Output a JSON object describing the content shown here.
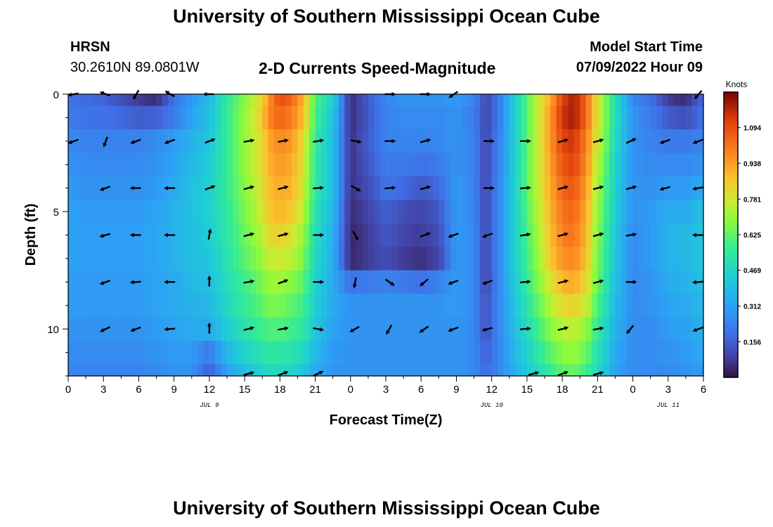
{
  "header": {
    "title": "University of Southern Mississippi Ocean Cube",
    "station": "HRSN",
    "coordinates": "30.2610N  89.0801W",
    "subtitle": "2-D Currents Speed-Magnitude",
    "model_start_label": "Model Start Time",
    "model_start_value": "07/09/2022 Hour 09"
  },
  "footer": {
    "title": "University of Southern Mississippi Ocean Cube"
  },
  "chart_data": {
    "type": "heatmap",
    "xlabel": "Forecast Time(Z)",
    "ylabel": "Depth (ft)",
    "x_ticks": [
      {
        "t": 0,
        "label": "0"
      },
      {
        "t": 3,
        "label": "3"
      },
      {
        "t": 6,
        "label": "6"
      },
      {
        "t": 9,
        "label": "9"
      },
      {
        "t": 12,
        "label": "12"
      },
      {
        "t": 15,
        "label": "15"
      },
      {
        "t": 18,
        "label": "18"
      },
      {
        "t": 21,
        "label": "21"
      },
      {
        "t": 24,
        "label": "0"
      },
      {
        "t": 27,
        "label": "3"
      },
      {
        "t": 30,
        "label": "6"
      },
      {
        "t": 33,
        "label": "9"
      },
      {
        "t": 36,
        "label": "12"
      },
      {
        "t": 39,
        "label": "15"
      },
      {
        "t": 42,
        "label": "18"
      },
      {
        "t": 45,
        "label": "21"
      },
      {
        "t": 48,
        "label": "0"
      },
      {
        "t": 51,
        "label": "3"
      },
      {
        "t": 54,
        "label": "6"
      }
    ],
    "date_labels": [
      {
        "t": 12,
        "label": "JUL 9"
      },
      {
        "t": 36,
        "label": "JUL 10"
      },
      {
        "t": 51,
        "label": "JUL 11"
      }
    ],
    "x_range": [
      0,
      54
    ],
    "y_ticks": [
      0,
      5,
      10
    ],
    "y_range": [
      0,
      12
    ],
    "y_inverted": true,
    "colorbar": {
      "label": "Knots",
      "ticks": [
        "1.094",
        "0.938",
        "0.781",
        "0.625",
        "0.469",
        "0.312",
        "0.156"
      ],
      "tick_values": [
        1.094,
        0.938,
        0.781,
        0.625,
        0.469,
        0.312,
        0.156
      ],
      "range": [
        0.0,
        1.25
      ],
      "colormap": "turbo"
    },
    "depths": [
      0,
      1,
      2,
      3,
      4,
      5,
      6,
      7,
      8,
      9,
      10,
      11,
      12
    ],
    "time_nodes": [
      0,
      1.5,
      3,
      4.5,
      6,
      7.5,
      9,
      10.5,
      12,
      13.5,
      15,
      16.5,
      17,
      18,
      19,
      20,
      21,
      22.5,
      24,
      25.5,
      27,
      28.5,
      30,
      31.5,
      33,
      34.5,
      35.5,
      36.5,
      38,
      39.5,
      41,
      42,
      43,
      44,
      45,
      46.5,
      48,
      49.5,
      51,
      52.5,
      54
    ],
    "speed": [
      [
        0.2,
        0.18,
        0.17,
        0.12,
        0.08,
        0.05,
        0.2,
        0.3,
        0.38,
        0.55,
        0.68,
        0.82,
        0.95,
        1.1,
        1.05,
        0.9,
        0.6,
        0.45,
        0.05,
        0.15,
        0.25,
        0.28,
        0.28,
        0.28,
        0.3,
        0.25,
        0.1,
        0.2,
        0.45,
        0.7,
        0.92,
        1.12,
        1.2,
        1.05,
        0.8,
        0.5,
        0.25,
        0.2,
        0.08,
        0.05,
        0.18
      ],
      [
        0.22,
        0.2,
        0.2,
        0.18,
        0.15,
        0.16,
        0.22,
        0.32,
        0.4,
        0.56,
        0.7,
        0.85,
        0.98,
        1.05,
        1.0,
        0.88,
        0.58,
        0.42,
        0.05,
        0.14,
        0.24,
        0.26,
        0.26,
        0.26,
        0.28,
        0.22,
        0.1,
        0.2,
        0.45,
        0.7,
        0.95,
        1.15,
        1.2,
        1.05,
        0.8,
        0.5,
        0.28,
        0.22,
        0.15,
        0.12,
        0.2
      ],
      [
        0.26,
        0.24,
        0.24,
        0.24,
        0.24,
        0.26,
        0.3,
        0.36,
        0.42,
        0.56,
        0.7,
        0.82,
        0.92,
        0.98,
        0.95,
        0.82,
        0.55,
        0.4,
        0.06,
        0.15,
        0.24,
        0.25,
        0.24,
        0.25,
        0.28,
        0.24,
        0.1,
        0.22,
        0.45,
        0.7,
        0.95,
        1.12,
        1.15,
        1.0,
        0.78,
        0.48,
        0.28,
        0.24,
        0.22,
        0.22,
        0.24
      ],
      [
        0.28,
        0.26,
        0.26,
        0.26,
        0.26,
        0.28,
        0.32,
        0.38,
        0.44,
        0.56,
        0.7,
        0.82,
        0.9,
        0.95,
        0.92,
        0.8,
        0.54,
        0.4,
        0.06,
        0.14,
        0.22,
        0.22,
        0.2,
        0.22,
        0.28,
        0.24,
        0.1,
        0.22,
        0.46,
        0.7,
        0.94,
        1.08,
        1.12,
        0.98,
        0.75,
        0.46,
        0.28,
        0.26,
        0.26,
        0.26,
        0.28
      ],
      [
        0.3,
        0.28,
        0.28,
        0.28,
        0.28,
        0.3,
        0.34,
        0.4,
        0.45,
        0.56,
        0.68,
        0.8,
        0.88,
        0.92,
        0.9,
        0.78,
        0.54,
        0.4,
        0.06,
        0.12,
        0.2,
        0.18,
        0.14,
        0.18,
        0.3,
        0.24,
        0.1,
        0.24,
        0.46,
        0.7,
        0.92,
        1.05,
        1.08,
        0.95,
        0.72,
        0.45,
        0.28,
        0.28,
        0.3,
        0.3,
        0.34
      ],
      [
        0.32,
        0.3,
        0.3,
        0.3,
        0.3,
        0.32,
        0.36,
        0.4,
        0.45,
        0.55,
        0.66,
        0.78,
        0.86,
        0.9,
        0.86,
        0.75,
        0.52,
        0.38,
        0.05,
        0.1,
        0.16,
        0.12,
        0.1,
        0.14,
        0.3,
        0.25,
        0.1,
        0.24,
        0.46,
        0.68,
        0.9,
        1.02,
        1.05,
        0.92,
        0.7,
        0.44,
        0.28,
        0.3,
        0.34,
        0.34,
        0.4
      ],
      [
        0.32,
        0.31,
        0.31,
        0.31,
        0.31,
        0.33,
        0.36,
        0.4,
        0.44,
        0.54,
        0.64,
        0.74,
        0.82,
        0.84,
        0.8,
        0.7,
        0.5,
        0.36,
        0.04,
        0.08,
        0.14,
        0.1,
        0.08,
        0.12,
        0.3,
        0.26,
        0.1,
        0.24,
        0.46,
        0.66,
        0.88,
        1.0,
        1.02,
        0.9,
        0.68,
        0.42,
        0.26,
        0.3,
        0.36,
        0.38,
        0.42
      ],
      [
        0.32,
        0.31,
        0.31,
        0.31,
        0.31,
        0.33,
        0.36,
        0.4,
        0.42,
        0.52,
        0.62,
        0.7,
        0.76,
        0.78,
        0.75,
        0.66,
        0.48,
        0.35,
        0.04,
        0.08,
        0.12,
        0.08,
        0.06,
        0.1,
        0.3,
        0.26,
        0.1,
        0.24,
        0.46,
        0.64,
        0.86,
        0.96,
        0.98,
        0.88,
        0.66,
        0.42,
        0.26,
        0.3,
        0.36,
        0.38,
        0.42
      ],
      [
        0.3,
        0.3,
        0.3,
        0.3,
        0.3,
        0.32,
        0.34,
        0.38,
        0.4,
        0.5,
        0.58,
        0.66,
        0.7,
        0.72,
        0.68,
        0.62,
        0.46,
        0.34,
        0.2,
        0.22,
        0.24,
        0.22,
        0.2,
        0.24,
        0.3,
        0.26,
        0.1,
        0.24,
        0.44,
        0.62,
        0.8,
        0.9,
        0.92,
        0.84,
        0.64,
        0.4,
        0.26,
        0.28,
        0.34,
        0.36,
        0.4
      ],
      [
        0.3,
        0.3,
        0.3,
        0.3,
        0.3,
        0.32,
        0.34,
        0.36,
        0.38,
        0.48,
        0.56,
        0.62,
        0.66,
        0.66,
        0.62,
        0.58,
        0.44,
        0.34,
        0.28,
        0.28,
        0.28,
        0.28,
        0.28,
        0.28,
        0.3,
        0.26,
        0.12,
        0.24,
        0.42,
        0.58,
        0.74,
        0.82,
        0.84,
        0.78,
        0.6,
        0.38,
        0.26,
        0.28,
        0.32,
        0.34,
        0.38
      ],
      [
        0.28,
        0.28,
        0.28,
        0.28,
        0.28,
        0.3,
        0.32,
        0.34,
        0.34,
        0.44,
        0.52,
        0.58,
        0.6,
        0.6,
        0.58,
        0.54,
        0.42,
        0.32,
        0.28,
        0.28,
        0.28,
        0.28,
        0.28,
        0.28,
        0.28,
        0.26,
        0.12,
        0.24,
        0.4,
        0.54,
        0.68,
        0.74,
        0.76,
        0.7,
        0.56,
        0.36,
        0.26,
        0.26,
        0.3,
        0.32,
        0.36
      ],
      [
        0.26,
        0.26,
        0.26,
        0.26,
        0.26,
        0.28,
        0.3,
        0.3,
        0.22,
        0.38,
        0.46,
        0.52,
        0.54,
        0.54,
        0.52,
        0.48,
        0.38,
        0.3,
        0.28,
        0.28,
        0.28,
        0.28,
        0.28,
        0.28,
        0.28,
        0.26,
        0.15,
        0.24,
        0.38,
        0.5,
        0.62,
        0.68,
        0.7,
        0.64,
        0.52,
        0.34,
        0.26,
        0.26,
        0.28,
        0.3,
        0.34
      ],
      [
        0.24,
        0.24,
        0.24,
        0.24,
        0.24,
        0.26,
        0.28,
        0.28,
        0.15,
        0.32,
        0.4,
        0.46,
        0.48,
        0.48,
        0.46,
        0.42,
        0.34,
        0.28,
        0.28,
        0.28,
        0.28,
        0.28,
        0.28,
        0.28,
        0.28,
        0.26,
        0.18,
        0.24,
        0.36,
        0.46,
        0.56,
        0.62,
        0.64,
        0.58,
        0.48,
        0.32,
        0.26,
        0.26,
        0.26,
        0.28,
        0.3
      ]
    ],
    "arrow_columns": [
      {
        "t": 0.5,
        "dirs": {
          "0": 190,
          "2": 200,
          "4": null,
          "6": null,
          "8": null,
          "10": null
        }
      },
      {
        "t": 3.2,
        "dirs": {
          "0": 160,
          "2": 250,
          "4": 200,
          "6": 195,
          "8": 200,
          "10": 205
        }
      },
      {
        "t": 5.8,
        "dirs": {
          "0": 240,
          "2": 200,
          "4": 180,
          "6": 180,
          "8": 185,
          "10": 200
        }
      },
      {
        "t": 8.7,
        "dirs": {
          "0": 150,
          "2": 200,
          "4": 180,
          "6": 180,
          "8": 180,
          "10": 185
        }
      },
      {
        "t": 12.0,
        "dirs": {
          "0": 180,
          "2": 20,
          "4": 20,
          "6": 80,
          "8": 90,
          "10": 90
        }
      },
      {
        "t": 15.3,
        "dirs": {
          "0": null,
          "2": 10,
          "4": 15,
          "6": 15,
          "8": 10,
          "10": 15
        }
      },
      {
        "t": 18.2,
        "dirs": {
          "0": null,
          "2": 10,
          "4": 15,
          "6": 15,
          "8": 20,
          "10": 10
        }
      },
      {
        "t": 21.2,
        "dirs": {
          "0": null,
          "2": 10,
          "4": 5,
          "6": 0,
          "8": 0,
          "10": -10
        }
      },
      {
        "t": 24.4,
        "dirs": {
          "0": null,
          "2": -10,
          "4": -30,
          "6": -60,
          "8": 260,
          "10": 210
        }
      },
      {
        "t": 27.3,
        "dirs": {
          "0": 0,
          "2": 0,
          "4": 5,
          "6": null,
          "8": -35,
          "10": 240
        }
      },
      {
        "t": 30.3,
        "dirs": {
          "0": 0,
          "2": 15,
          "4": 15,
          "6": 20,
          "8": 220,
          "10": 215
        }
      },
      {
        "t": 32.8,
        "dirs": {
          "0": 215,
          "2": null,
          "4": null,
          "6": 200,
          "8": 200,
          "10": 200
        }
      },
      {
        "t": 35.7,
        "dirs": {
          "0": null,
          "2": 0,
          "4": 0,
          "6": 200,
          "8": 200,
          "10": 195
        }
      },
      {
        "t": 38.8,
        "dirs": {
          "0": null,
          "2": 0,
          "4": 5,
          "6": 10,
          "8": 5,
          "10": 5
        }
      },
      {
        "t": 42.0,
        "dirs": {
          "0": null,
          "2": 15,
          "4": 15,
          "6": 15,
          "8": 15,
          "10": 15
        }
      },
      {
        "t": 45.0,
        "dirs": {
          "0": null,
          "2": 15,
          "4": 15,
          "6": 15,
          "8": 15,
          "10": 10
        }
      },
      {
        "t": 47.8,
        "dirs": {
          "0": null,
          "2": 25,
          "4": 15,
          "6": 10,
          "8": 0,
          "10": 230
        }
      },
      {
        "t": 50.8,
        "dirs": {
          "0": null,
          "2": 200,
          "4": 195,
          "6": null,
          "8": null,
          "10": null
        }
      },
      {
        "t": 53.6,
        "dirs": {
          "0": 230,
          "2": 200,
          "4": 190,
          "6": 180,
          "8": 185,
          "10": 200
        }
      }
    ],
    "bottom_arrows": [
      {
        "t": 15.3,
        "dir": 15
      },
      {
        "t": 18.2,
        "dir": 20
      },
      {
        "t": 21.2,
        "dir": 25
      },
      {
        "t": 39.5,
        "dir": 15
      },
      {
        "t": 42.0,
        "dir": 20
      },
      {
        "t": 45.0,
        "dir": 15
      }
    ]
  }
}
